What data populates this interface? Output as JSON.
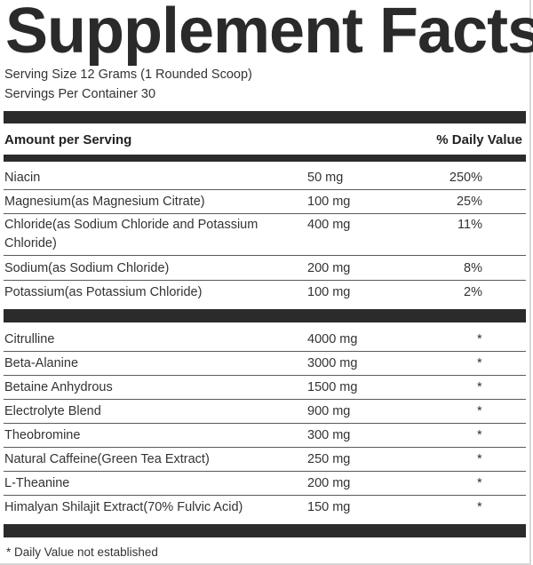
{
  "title": "Supplement Facts",
  "serving_size": "Serving Size 12 Grams (1 Rounded Scoop)",
  "servings_per_container": "Servings Per Container 30",
  "header": {
    "amount": "Amount per Serving",
    "daily_value": "% Daily Value"
  },
  "section1": [
    {
      "name": "Niacin",
      "amount": "50 mg",
      "dv": "250%"
    },
    {
      "name": "Magnesium(as Magnesium Citrate)",
      "amount": "100 mg",
      "dv": "25%"
    },
    {
      "name": "Chloride(as Sodium Chloride and Potassium Chloride)",
      "amount": "400 mg",
      "dv": "11%"
    },
    {
      "name": "Sodium(as Sodium Chloride)",
      "amount": "200 mg",
      "dv": "8%"
    },
    {
      "name": "Potassium(as Potassium Chloride)",
      "amount": "100 mg",
      "dv": "2%"
    }
  ],
  "section2": [
    {
      "name": "Citrulline",
      "amount": "4000 mg",
      "dv": "*"
    },
    {
      "name": "Beta-Alanine",
      "amount": "3000 mg",
      "dv": "*"
    },
    {
      "name": "Betaine Anhydrous",
      "amount": "1500 mg",
      "dv": "*"
    },
    {
      "name": "Electrolyte Blend",
      "amount": "900 mg",
      "dv": "*"
    },
    {
      "name": "Theobromine",
      "amount": "300 mg",
      "dv": "*"
    },
    {
      "name": "Natural Caffeine(Green Tea Extract)",
      "amount": "250 mg",
      "dv": "*"
    },
    {
      "name": "L-Theanine",
      "amount": "200 mg",
      "dv": "*"
    },
    {
      "name": "Himalyan Shilajit Extract(70% Fulvic Acid)",
      "amount": "150 mg",
      "dv": "*"
    }
  ],
  "footnote": "* Daily Value not established",
  "colors": {
    "bar": "#2b2b2b",
    "text": "#333333"
  }
}
